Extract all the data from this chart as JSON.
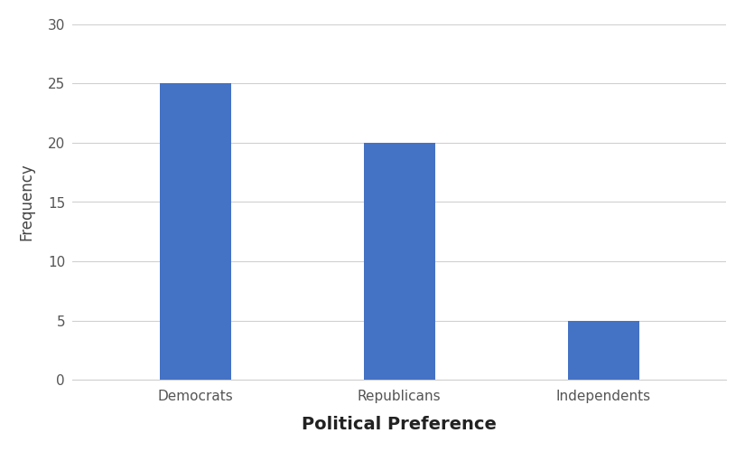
{
  "categories": [
    "Democrats",
    "Republicans",
    "Independents"
  ],
  "values": [
    25,
    20,
    5
  ],
  "bar_color": "#4472C4",
  "bar_width": 0.35,
  "xlabel": "Political Preference",
  "ylabel": "Frequency",
  "ylim": [
    0,
    30
  ],
  "yticks": [
    0,
    5,
    10,
    15,
    20,
    25,
    30
  ],
  "background_color": "#ffffff",
  "grid_color": "#d0d0d0",
  "xlabel_fontsize": 14,
  "ylabel_fontsize": 12,
  "tick_fontsize": 11,
  "xlabel_fontweight": "bold",
  "ylabel_fontweight": "normal",
  "tick_color": "#555555"
}
